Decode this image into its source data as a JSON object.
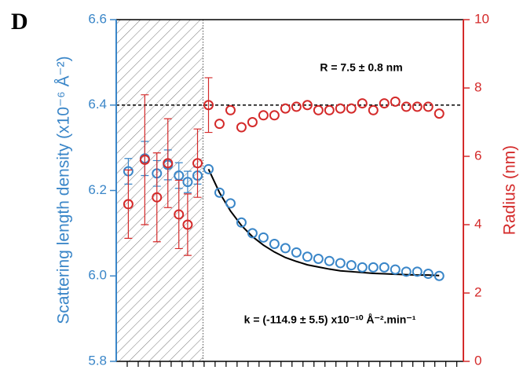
{
  "chart_data": {
    "type": "scatter",
    "panel_label": "D",
    "y_label": "Scattering length density (x10⁻⁶ Å⁻²)",
    "y2_label": "Radius (nm)",
    "annotations": [
      "R = 7.5 ± 0.8 nm",
      "k = (-114.9 ± 5.5) x10⁻¹⁰ Å⁻².min⁻¹"
    ],
    "xlim": [
      0,
      31.6
    ],
    "xticks": [
      1,
      2,
      3,
      4,
      5,
      6,
      7,
      8,
      9,
      10,
      11,
      12,
      13,
      14,
      15,
      16,
      17,
      18,
      19,
      20,
      21,
      22,
      23,
      24,
      25,
      26,
      27,
      28,
      29,
      30,
      31
    ],
    "ylim": [
      5.8,
      6.6
    ],
    "yticks": [
      5.8,
      {
        "value": 6,
        "label": "6.0"
      },
      6.2,
      6.4,
      6.6
    ],
    "y2lim": [
      0,
      10
    ],
    "y2ticks": [
      0,
      2,
      4,
      6,
      8,
      10
    ],
    "shaded_xrange": [
      0,
      7.9
    ],
    "hline": 6.4,
    "series": [
      {
        "color": "#3a86c8",
        "x": [
          1.1,
          2.6,
          3.7,
          4.7,
          5.7,
          6.5,
          7.4,
          8.4,
          9.4,
          10.4,
          11.4,
          12.4,
          13.4,
          14.4,
          15.4,
          16.4,
          17.4,
          18.4,
          19.4,
          20.4,
          21.4,
          22.4,
          23.4,
          24.4,
          25.4,
          26.4,
          27.4,
          28.4,
          29.4
        ],
        "values": [
          6.245,
          6.275,
          6.24,
          6.26,
          6.235,
          6.22,
          6.235,
          6.25,
          6.195,
          6.17,
          6.125,
          6.1,
          6.09,
          6.075,
          6.065,
          6.055,
          6.045,
          6.04,
          6.035,
          6.03,
          6.025,
          6.02,
          6.02,
          6.02,
          6.015,
          6.01,
          6.01,
          6.005,
          6.0
        ],
        "errors": [
          0.03,
          0.04,
          0.03,
          0.035,
          0.03,
          0.025,
          0.02,
          null,
          null,
          null,
          null,
          null,
          null,
          null,
          null,
          null,
          null,
          null,
          null,
          null,
          null,
          null,
          null,
          null,
          null,
          null,
          null,
          null,
          null
        ]
      },
      {
        "color": "#d42a2a",
        "axis": "y2",
        "x": [
          1.1,
          2.6,
          3.7,
          4.7,
          5.7,
          6.5,
          7.4,
          8.4,
          9.4,
          10.4,
          11.4,
          12.4,
          13.4,
          14.4,
          15.4,
          16.4,
          17.4,
          18.4,
          19.4,
          20.4,
          21.4,
          22.4,
          23.4,
          24.4,
          25.4,
          26.4,
          27.4,
          28.4,
          29.4
        ],
        "values": [
          4.6,
          5.9,
          4.8,
          5.8,
          4.3,
          4.0,
          5.8,
          7.5,
          6.95,
          7.35,
          6.85,
          7.0,
          7.2,
          7.2,
          7.4,
          7.45,
          7.5,
          7.35,
          7.35,
          7.4,
          7.4,
          7.55,
          7.35,
          7.55,
          7.6,
          7.45,
          7.45,
          7.45,
          7.25
        ],
        "errors": [
          1.0,
          1.9,
          1.3,
          1.3,
          1.0,
          0.9,
          1.0,
          0.8,
          null,
          null,
          null,
          null,
          null,
          null,
          null,
          null,
          null,
          null,
          null,
          null,
          null,
          null,
          null,
          null,
          null,
          null,
          null,
          null,
          null
        ]
      }
    ],
    "fit": {
      "color": "#000000",
      "x": [
        8.4,
        9.4,
        10.4,
        11.4,
        12.4,
        13.4,
        14.4,
        15.4,
        16.4,
        17.4,
        18.4,
        19.4,
        20.4,
        21.4,
        22.4,
        23.4,
        24.4,
        25.4,
        26.4,
        27.4,
        28.4,
        29.4
      ],
      "values": [
        6.25,
        6.195,
        6.152,
        6.118,
        6.092,
        6.072,
        6.056,
        6.043,
        6.034,
        6.026,
        6.021,
        6.016,
        6.012,
        6.01,
        6.008,
        6.006,
        6.005,
        6.004,
        6.003,
        6.002,
        6.002,
        6.001
      ]
    }
  }
}
